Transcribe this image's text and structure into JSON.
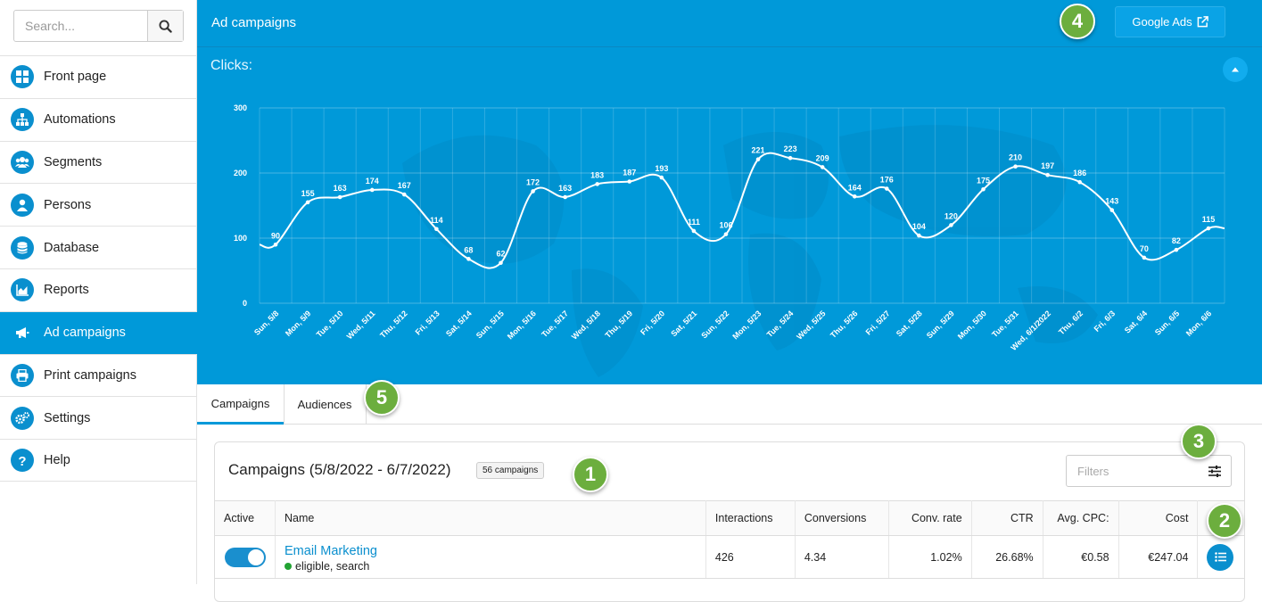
{
  "search": {
    "placeholder": "Search..."
  },
  "sidebar": {
    "items": [
      {
        "label": "Front page",
        "icon": "grid-icon"
      },
      {
        "label": "Automations",
        "icon": "sitemap-icon"
      },
      {
        "label": "Segments",
        "icon": "users-icon"
      },
      {
        "label": "Persons",
        "icon": "user-icon"
      },
      {
        "label": "Database",
        "icon": "database-icon"
      },
      {
        "label": "Reports",
        "icon": "area-chart-icon"
      },
      {
        "label": "Ad campaigns",
        "icon": "megaphone-icon",
        "active": true
      },
      {
        "label": "Print campaigns",
        "icon": "printer-icon"
      },
      {
        "label": "Settings",
        "icon": "gears-icon"
      },
      {
        "label": "Help",
        "icon": "question-icon"
      }
    ]
  },
  "header": {
    "title": "Ad campaigns",
    "google_ads_label": "Google Ads"
  },
  "chart_data": {
    "type": "line",
    "title": "Clicks:",
    "categories": [
      "Sun, 5/8",
      "Mon, 5/9",
      "Tue, 5/10",
      "Wed, 5/11",
      "Thu, 5/12",
      "Fri, 5/13",
      "Sat, 5/14",
      "Sun, 5/15",
      "Mon, 5/16",
      "Tue, 5/17",
      "Wed, 5/18",
      "Thu, 5/19",
      "Fri, 5/20",
      "Sat, 5/21",
      "Sun, 5/22",
      "Mon, 5/23",
      "Tue, 5/24",
      "Wed, 5/25",
      "Thu, 5/26",
      "Fri, 5/27",
      "Sat, 5/28",
      "Sun, 5/29",
      "Mon, 5/30",
      "Tue, 5/31",
      "Wed, 6/1/2022",
      "Thu, 6/2",
      "Fri, 6/3",
      "Sat, 6/4",
      "Sun, 6/5",
      "Mon, 6/6"
    ],
    "values": [
      90,
      155,
      163,
      174,
      167,
      114,
      68,
      62,
      172,
      163,
      183,
      187,
      193,
      111,
      106,
      221,
      223,
      209,
      164,
      176,
      104,
      120,
      175,
      210,
      197,
      186,
      143,
      70,
      82,
      115
    ],
    "yticks": [
      0,
      100,
      200,
      300
    ],
    "ylim": [
      0,
      300
    ],
    "grid": true,
    "colors": {
      "line": "#ffffff",
      "background": "#0099d9"
    }
  },
  "tabs": [
    {
      "label": "Campaigns",
      "active": true
    },
    {
      "label": "Audiences",
      "active": false
    }
  ],
  "callouts": [
    "1",
    "2",
    "3",
    "4",
    "5"
  ],
  "campaigns": {
    "title": "Campaigns (5/8/2022 - 6/7/2022)",
    "count": "56 campaigns",
    "filters_placeholder": "Filters",
    "columns": [
      "Active",
      "Name",
      "Interactions",
      "Conversions",
      "Conv. rate",
      "CTR",
      "Avg. CPC:",
      "Cost"
    ],
    "rows": [
      {
        "name": "Email Marketing",
        "status": "eligible, search",
        "interactions": "426",
        "conversions": "4.34",
        "conv_rate": "1.02%",
        "ctr": "26.68%",
        "avg_cpc": "€0.58",
        "cost": "€247.04"
      }
    ]
  }
}
